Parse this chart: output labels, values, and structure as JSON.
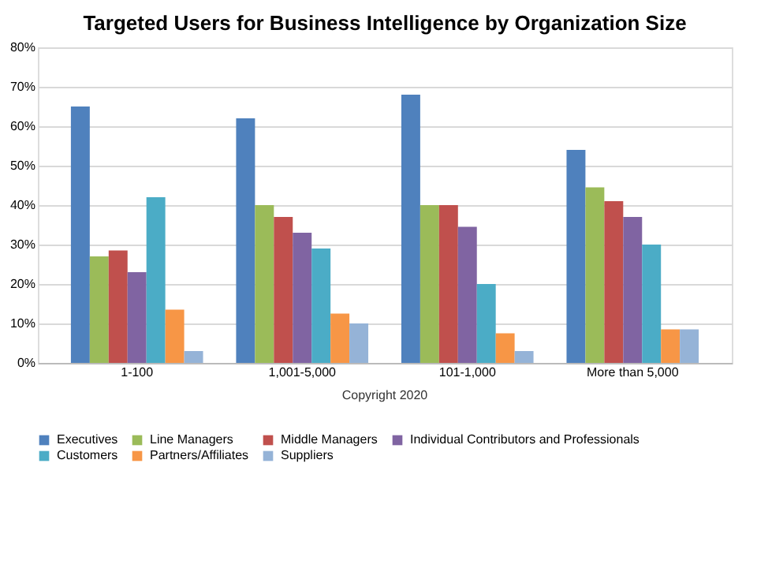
{
  "chart_data": {
    "type": "bar",
    "title": "Targeted Users for Business Intelligence by Organization Size",
    "categories": [
      "1-100",
      "1,001-5,000",
      "101-1,000",
      "More than 5,000"
    ],
    "series": [
      {
        "name": "Executives",
        "color": "#4f81bd",
        "values": [
          65,
          62,
          68,
          54
        ]
      },
      {
        "name": "Line Managers",
        "color": "#9bbb59",
        "values": [
          27,
          40,
          40,
          44.5
        ]
      },
      {
        "name": "Middle Managers",
        "color": "#c0504d",
        "values": [
          28.5,
          37,
          40,
          41
        ]
      },
      {
        "name": "Individual Contributors and Professionals",
        "color": "#8064a2",
        "values": [
          23,
          33,
          34.5,
          37
        ]
      },
      {
        "name": "Customers",
        "color": "#4bacc6",
        "values": [
          42,
          29,
          20,
          30
        ]
      },
      {
        "name": "Partners/Affiliates",
        "color": "#f79646",
        "values": [
          13.5,
          12.5,
          7.5,
          8.5
        ]
      },
      {
        "name": "Suppliers",
        "color": "#95b3d7",
        "values": [
          3,
          10,
          3,
          8.5
        ]
      }
    ],
    "ylim": [
      0,
      80
    ],
    "yticks": [
      {
        "value": 0,
        "label": "0%"
      },
      {
        "value": 10,
        "label": "10%"
      },
      {
        "value": 20,
        "label": "20%"
      },
      {
        "value": 30,
        "label": "30%"
      },
      {
        "value": 40,
        "label": "40%"
      },
      {
        "value": 50,
        "label": "50%"
      },
      {
        "value": 60,
        "label": "60%"
      },
      {
        "value": 70,
        "label": "70%"
      },
      {
        "value": 80,
        "label": "80%"
      }
    ],
    "grid": "y",
    "legend": "bottom",
    "annotations": [
      "Copyright 2020"
    ]
  }
}
